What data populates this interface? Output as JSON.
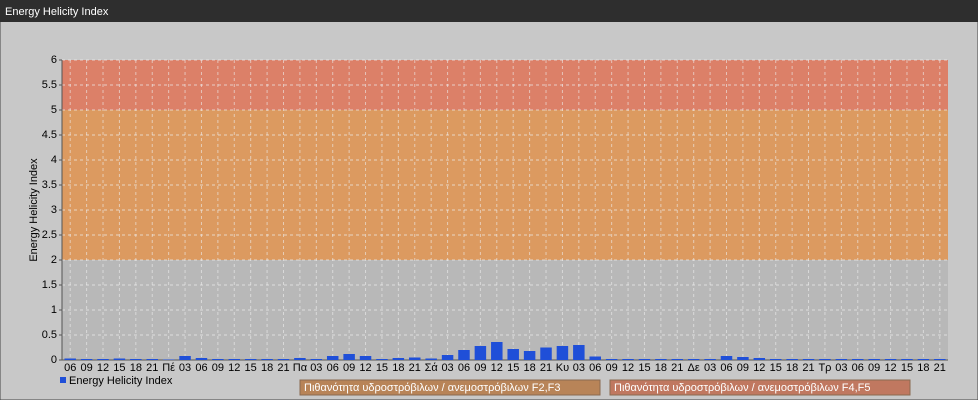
{
  "page_title": "Energy Helicity Index",
  "chart_data": {
    "type": "bar",
    "y_label": "Energy Helicity Index",
    "categories": [
      "06",
      "09",
      "12",
      "15",
      "18",
      "21",
      "Πέ",
      "03",
      "06",
      "09",
      "12",
      "15",
      "18",
      "21",
      "Πα",
      "03",
      "06",
      "09",
      "12",
      "15",
      "18",
      "21",
      "Σά",
      "03",
      "06",
      "09",
      "12",
      "15",
      "18",
      "21",
      "Κυ",
      "03",
      "06",
      "09",
      "12",
      "15",
      "18",
      "21",
      "Δε",
      "03",
      "06",
      "09",
      "12",
      "15",
      "18",
      "21",
      "Τρ",
      "03",
      "06",
      "09",
      "12",
      "15",
      "18",
      "21"
    ],
    "series": [
      {
        "name": "Energy Helicity Index",
        "color": "#1f4fd8",
        "values": [
          0.03,
          0.02,
          0.02,
          0.03,
          0.02,
          0.02,
          0.01,
          0.08,
          0.04,
          0.02,
          0.02,
          0.02,
          0.02,
          0.02,
          0.04,
          0.02,
          0.08,
          0.12,
          0.08,
          0.02,
          0.04,
          0.05,
          0.03,
          0.1,
          0.2,
          0.28,
          0.36,
          0.22,
          0.18,
          0.25,
          0.28,
          0.3,
          0.07,
          0.02,
          0.02,
          0.02,
          0.02,
          0.02,
          0.02,
          0.02,
          0.08,
          0.06,
          0.04,
          0.02,
          0.02,
          0.02,
          0.02,
          0.02,
          0.02,
          0.02,
          0.02,
          0.02,
          0.02,
          0.02
        ]
      }
    ],
    "ylim": [
      0,
      6
    ],
    "yticks": [
      0,
      0.5,
      1,
      1.5,
      2,
      2.5,
      3,
      3.5,
      4,
      4.5,
      5,
      5.5,
      6
    ],
    "grid": true,
    "bands": [
      {
        "from": 0,
        "to": 2,
        "color": "#b8b8b8"
      },
      {
        "from": 2,
        "to": 5,
        "color": "#dc9a60"
      },
      {
        "from": 5,
        "to": 6,
        "color": "#dc8068"
      }
    ],
    "annotations": [
      {
        "text": "Πιθανότητα υδροστρόβιλων / ανεμοστρόβιλων F2,F3",
        "color": "#b88458"
      },
      {
        "text": "Πιθανότητα υδροστρόβιλων / ανεμοστρόβιλων F4,F5",
        "color": "#c07860"
      }
    ]
  }
}
